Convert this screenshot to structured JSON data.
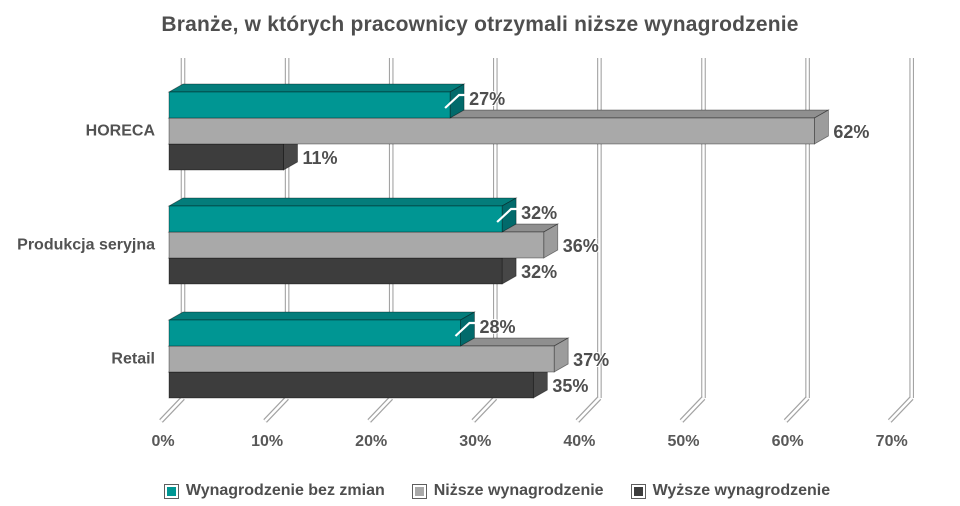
{
  "chart_data": {
    "type": "bar",
    "orientation": "horizontal",
    "style": "3d",
    "title": "Branże, w których pracownicy otrzymali niższe wynagrodzenie",
    "categories": [
      "HORECA",
      "Produkcja seryjna",
      "Retail"
    ],
    "series": [
      {
        "name": "Wynagrodzenie bez zmian",
        "color": "#009693",
        "color_top": "#047d7b",
        "color_side": "#026a6b",
        "values": [
          27,
          32,
          28
        ]
      },
      {
        "name": "Niższe wynagrodzenie",
        "color": "#a9a9a9",
        "color_top": "#8f8f8f",
        "color_side": "#9c9c9c",
        "values": [
          62,
          36,
          37
        ]
      },
      {
        "name": "Wyższe wynagrodzenie",
        "color": "#3d3d3d",
        "color_top": "#2d2d2d",
        "color_side": "#474747",
        "values": [
          11,
          32,
          35
        ]
      }
    ],
    "value_suffix": "%",
    "xlabel": "",
    "ylabel": "",
    "xlim": [
      0,
      70
    ],
    "xticks": [
      "0%",
      "10%",
      "20%",
      "30%",
      "40%",
      "50%",
      "60%",
      "70%"
    ],
    "grid": true,
    "legend_position": "bottom",
    "colors": {
      "text": "#4e4e4e",
      "grid_edge": "#a3a3a3",
      "grid_core": "#ffffff",
      "background": "#ffffff"
    }
  }
}
